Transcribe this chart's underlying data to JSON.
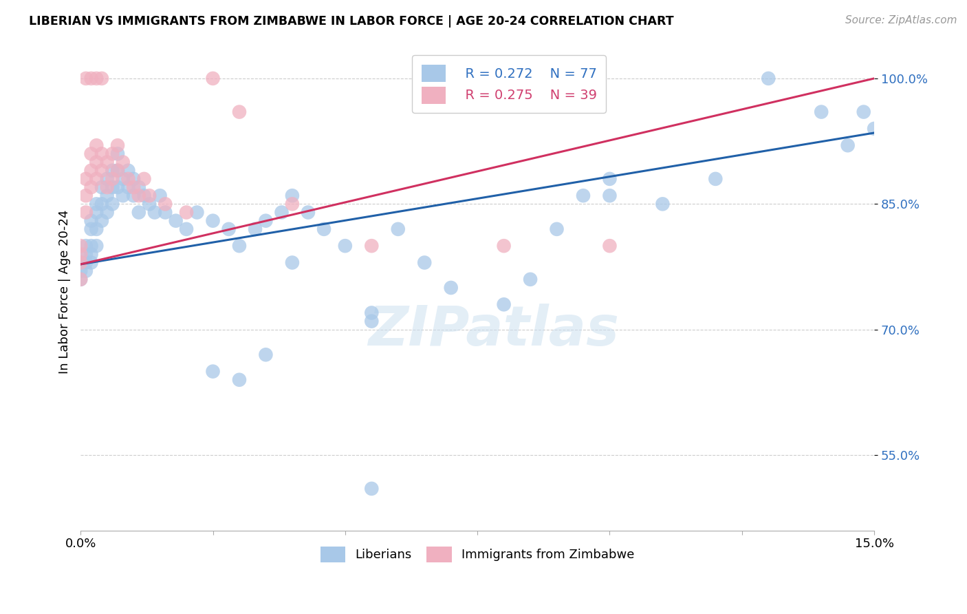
{
  "title": "LIBERIAN VS IMMIGRANTS FROM ZIMBABWE IN LABOR FORCE | AGE 20-24 CORRELATION CHART",
  "source": "Source: ZipAtlas.com",
  "ylabel": "In Labor Force | Age 20-24",
  "legend_blue_r": "R = 0.272",
  "legend_blue_n": "N = 77",
  "legend_pink_r": "R = 0.275",
  "legend_pink_n": "N = 39",
  "legend_label_blue": "Liberians",
  "legend_label_pink": "Immigrants from Zimbabwe",
  "blue_color": "#a8c8e8",
  "pink_color": "#f0b0c0",
  "line_blue": "#2060a8",
  "line_pink": "#d03060",
  "text_blue": "#3070c0",
  "text_pink": "#d04070",
  "watermark": "ZIPatlas",
  "xlim": [
    0.0,
    0.15
  ],
  "ylim": [
    0.46,
    1.03
  ],
  "yticks": [
    0.55,
    0.7,
    0.85,
    1.0
  ],
  "ytick_labels": [
    "55.0%",
    "70.0%",
    "85.0%",
    "100.0%"
  ],
  "blue_line_x": [
    0.0,
    0.15
  ],
  "blue_line_y": [
    0.778,
    0.935
  ],
  "pink_line_x": [
    0.0,
    0.15
  ],
  "pink_line_y": [
    0.778,
    1.0
  ],
  "blue_x": [
    0.0,
    0.0,
    0.0,
    0.001,
    0.001,
    0.001,
    0.001,
    0.002,
    0.002,
    0.002,
    0.002,
    0.002,
    0.003,
    0.003,
    0.003,
    0.003,
    0.004,
    0.004,
    0.004,
    0.005,
    0.005,
    0.005,
    0.006,
    0.006,
    0.006,
    0.007,
    0.007,
    0.007,
    0.008,
    0.008,
    0.009,
    0.009,
    0.01,
    0.01,
    0.011,
    0.011,
    0.012,
    0.013,
    0.014,
    0.015,
    0.016,
    0.018,
    0.02,
    0.022,
    0.025,
    0.028,
    0.03,
    0.033,
    0.035,
    0.038,
    0.04,
    0.043,
    0.046,
    0.05,
    0.055,
    0.06,
    0.065,
    0.04,
    0.055,
    0.07,
    0.08,
    0.085,
    0.09,
    0.095,
    0.1,
    0.1,
    0.11,
    0.12,
    0.13,
    0.14,
    0.145,
    0.148,
    0.15,
    0.055,
    0.025,
    0.03,
    0.035
  ],
  "blue_y": [
    0.78,
    0.77,
    0.76,
    0.8,
    0.79,
    0.78,
    0.77,
    0.83,
    0.82,
    0.8,
    0.79,
    0.78,
    0.85,
    0.84,
    0.82,
    0.8,
    0.87,
    0.85,
    0.83,
    0.88,
    0.86,
    0.84,
    0.89,
    0.87,
    0.85,
    0.91,
    0.89,
    0.87,
    0.88,
    0.86,
    0.89,
    0.87,
    0.88,
    0.86,
    0.87,
    0.84,
    0.86,
    0.85,
    0.84,
    0.86,
    0.84,
    0.83,
    0.82,
    0.84,
    0.83,
    0.82,
    0.8,
    0.82,
    0.83,
    0.84,
    0.86,
    0.84,
    0.82,
    0.8,
    0.72,
    0.82,
    0.78,
    0.78,
    0.71,
    0.75,
    0.73,
    0.76,
    0.82,
    0.86,
    0.86,
    0.88,
    0.85,
    0.88,
    1.0,
    0.96,
    0.92,
    0.96,
    0.94,
    0.51,
    0.65,
    0.64,
    0.67
  ],
  "pink_x": [
    0.0,
    0.0,
    0.0,
    0.0,
    0.001,
    0.001,
    0.001,
    0.002,
    0.002,
    0.002,
    0.003,
    0.003,
    0.003,
    0.004,
    0.004,
    0.005,
    0.005,
    0.006,
    0.006,
    0.007,
    0.007,
    0.008,
    0.009,
    0.01,
    0.011,
    0.012,
    0.013,
    0.016,
    0.02,
    0.025,
    0.03,
    0.04,
    0.055,
    0.08,
    0.1,
    0.001,
    0.002,
    0.003,
    0.004
  ],
  "pink_y": [
    0.8,
    0.79,
    0.78,
    0.76,
    0.88,
    0.86,
    0.84,
    0.91,
    0.89,
    0.87,
    0.92,
    0.9,
    0.88,
    0.91,
    0.89,
    0.9,
    0.87,
    0.91,
    0.88,
    0.92,
    0.89,
    0.9,
    0.88,
    0.87,
    0.86,
    0.88,
    0.86,
    0.85,
    0.84,
    1.0,
    0.96,
    0.85,
    0.8,
    0.8,
    0.8,
    1.0,
    1.0,
    1.0,
    1.0
  ]
}
